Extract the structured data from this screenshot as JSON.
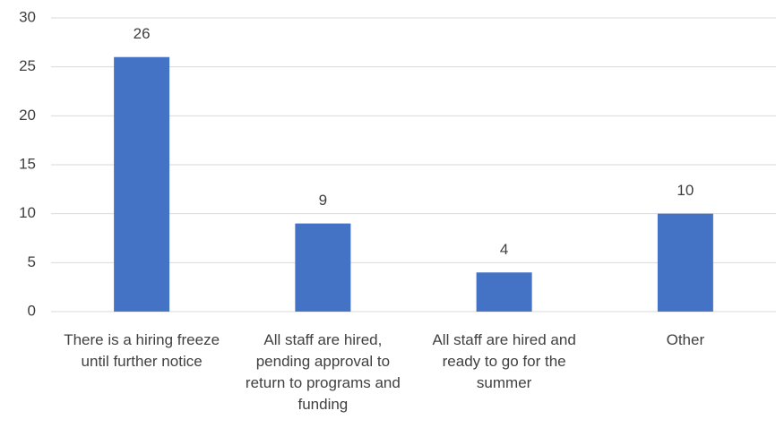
{
  "chart_data": {
    "type": "bar",
    "categories": [
      "There is a hiring freeze until further notice",
      "All staff are hired, pending approval to return to programs and funding",
      "All staff are hired and ready to go for the summer",
      "Other"
    ],
    "values": [
      26,
      9,
      4,
      10
    ],
    "color": "#4472c4",
    "ylim": [
      0,
      30
    ],
    "yticks": [
      0,
      5,
      10,
      15,
      20,
      25,
      30
    ],
    "grid": true
  }
}
